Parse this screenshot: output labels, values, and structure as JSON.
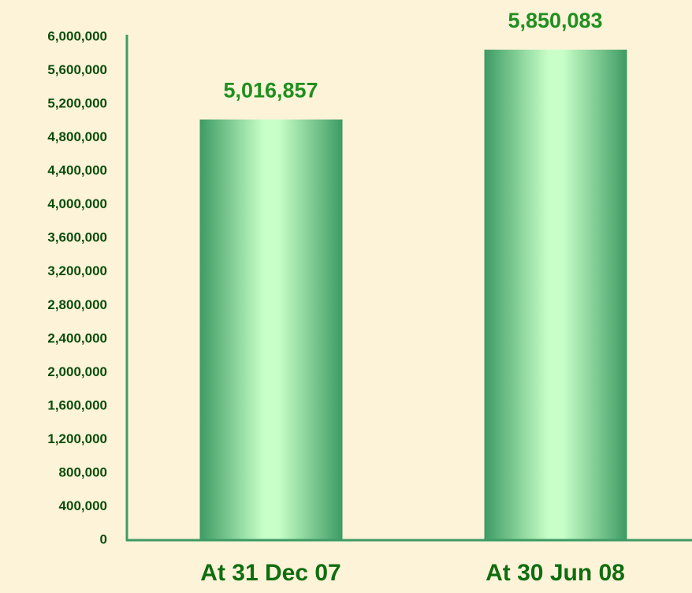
{
  "chart_data": {
    "type": "bar",
    "categories": [
      "At 31 Dec 07",
      "At 30 Jun 08"
    ],
    "values": [
      5016857,
      5850083
    ],
    "value_labels": [
      "5,016,857",
      "5,850,083"
    ],
    "color": "#3d9b63",
    "ylim": [
      0,
      6000000
    ],
    "yticks": [
      0,
      {
        "value": 400000,
        "label": "400,000"
      },
      {
        "value": 800000,
        "label": "800,000"
      },
      {
        "value": 1200000,
        "label": "1,200,000"
      },
      {
        "value": 1600000,
        "label": "1,600,000"
      },
      {
        "value": 2000000,
        "label": "2,000,000"
      },
      {
        "value": 2400000,
        "label": "2,400,000"
      },
      {
        "value": 2800000,
        "label": "2,800,000"
      },
      {
        "value": 3200000,
        "label": "3,200,000"
      },
      {
        "value": 3600000,
        "label": "3,600,000"
      },
      {
        "value": 4000000,
        "label": "4,000,000"
      },
      {
        "value": 4400000,
        "label": "4,400,000"
      },
      {
        "value": 4800000,
        "label": "4,800,000"
      },
      {
        "value": 5200000,
        "label": "5,200,000"
      },
      {
        "value": 5600000,
        "label": "5,600,000"
      },
      {
        "value": 6000000,
        "label": "6,000,000"
      }
    ],
    "grid": false
  }
}
